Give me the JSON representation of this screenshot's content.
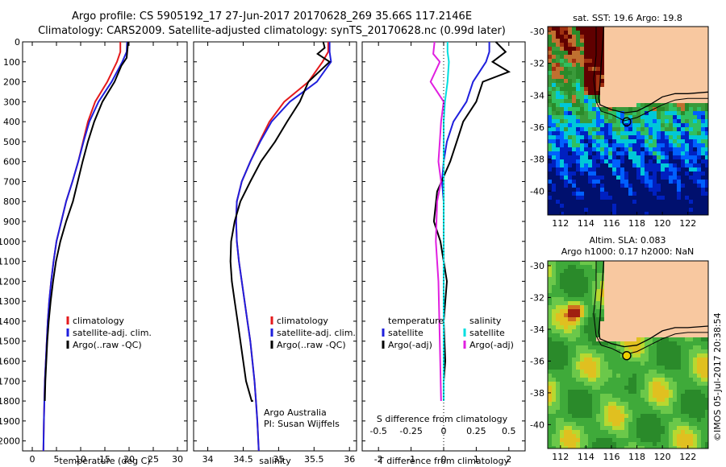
{
  "header": {
    "title_line1": "Argo profile: CS 5905192_17 27-Jun-2017 20170628_269 35.66S 117.2146E",
    "title_line2": "Climatology: CARS2009. Satellite-adjusted climatology: synTS_20170628.nc (0.99d later)"
  },
  "colors": {
    "climatology": "#e41a1c",
    "satellite": "#1f1fdd",
    "argo": "#000000",
    "sal_satellite": "#00dfe0",
    "sal_argo": "#e020e0"
  },
  "chart_data": [
    {
      "type": "line",
      "id": "temperature",
      "xlabel": "temperature (deg C)",
      "ylabel": "",
      "xticks": [
        "0",
        "5",
        "10",
        "15",
        "20",
        "25",
        "30"
      ],
      "yticks": [
        "0",
        "100",
        "200",
        "300",
        "400",
        "500",
        "600",
        "700",
        "800",
        "900",
        "1000",
        "1100",
        "1200",
        "1300",
        "1400",
        "1500",
        "1600",
        "1700",
        "1800",
        "1900",
        "2000"
      ],
      "xlim": [
        -2,
        32
      ],
      "ylim": [
        2050,
        0
      ],
      "legend": [
        "climatology",
        "satellite-adj. clim.",
        "Argo(..raw -QC)"
      ],
      "series": [
        {
          "name": "climatology",
          "color": "#e41a1c",
          "x": [
            18.2,
            18.2,
            17.5,
            15.5,
            13.0,
            11.5,
            10.5,
            9.5,
            8.3,
            7.0,
            6.0,
            5.0,
            4.4,
            3.9,
            3.5,
            3.2,
            3.0,
            2.8,
            2.6,
            2.5,
            2.4,
            2.3
          ],
          "y": [
            0,
            50,
            100,
            200,
            300,
            400,
            500,
            600,
            700,
            800,
            900,
            1000,
            1100,
            1200,
            1300,
            1400,
            1500,
            1600,
            1700,
            1800,
            1900,
            2050
          ]
        },
        {
          "name": "satellite-adj. clim.",
          "color": "#1f1fdd",
          "x": [
            19.6,
            19.5,
            18.6,
            16.4,
            13.7,
            11.8,
            10.6,
            9.5,
            8.3,
            7.0,
            6.0,
            5.0,
            4.4,
            3.9,
            3.5,
            3.2,
            3.0,
            2.8,
            2.6,
            2.5,
            2.4,
            2.3
          ],
          "y": [
            0,
            50,
            100,
            200,
            300,
            400,
            500,
            600,
            700,
            800,
            900,
            1000,
            1100,
            1200,
            1300,
            1400,
            1500,
            1600,
            1700,
            1800,
            1900,
            2050
          ]
        },
        {
          "name": "Argo(..raw -QC)",
          "color": "#000000",
          "x": [
            19.8,
            19.7,
            19.5,
            18.4,
            17.0,
            14.5,
            12.8,
            11.5,
            10.4,
            9.4,
            8.4,
            7.0,
            5.8,
            4.9,
            4.3,
            3.8,
            3.4,
            3.1,
            2.9,
            2.7,
            2.6
          ],
          "y": [
            0,
            30,
            80,
            120,
            200,
            300,
            400,
            500,
            600,
            700,
            800,
            900,
            1000,
            1100,
            1200,
            1300,
            1400,
            1500,
            1600,
            1700,
            1800
          ]
        }
      ]
    },
    {
      "type": "line",
      "id": "salinity",
      "xlabel": "salinity",
      "xticks": [
        "34",
        "34.5",
        "35",
        "35.5",
        "36"
      ],
      "xlim": [
        33.8,
        36.1
      ],
      "ylim": [
        2050,
        0
      ],
      "legend": [
        "climatology",
        "satellite-adj. clim.",
        "Argo(..raw -QC)"
      ],
      "annotation": [
        "Argo Australia",
        "PI: Susan Wijffels"
      ],
      "series": [
        {
          "name": "climatology",
          "color": "#e41a1c",
          "x": [
            35.7,
            35.7,
            35.62,
            35.42,
            35.08,
            34.87,
            34.73,
            34.6,
            34.48,
            34.41,
            34.4,
            34.41,
            34.44,
            34.48,
            34.52,
            34.56,
            34.6,
            34.63,
            34.66,
            34.68,
            34.7,
            34.72
          ],
          "y": [
            0,
            50,
            100,
            200,
            300,
            400,
            500,
            600,
            700,
            800,
            900,
            1000,
            1100,
            1200,
            1300,
            1400,
            1500,
            1600,
            1700,
            1800,
            1900,
            2050
          ]
        },
        {
          "name": "satellite-adj. clim.",
          "color": "#1f1fdd",
          "x": [
            35.72,
            35.72,
            35.74,
            35.54,
            35.16,
            34.9,
            34.74,
            34.6,
            34.48,
            34.41,
            34.4,
            34.41,
            34.44,
            34.48,
            34.52,
            34.56,
            34.6,
            34.63,
            34.66,
            34.68,
            34.7,
            34.72
          ],
          "y": [
            0,
            50,
            100,
            200,
            300,
            400,
            500,
            600,
            700,
            800,
            900,
            1000,
            1100,
            1200,
            1300,
            1400,
            1500,
            1600,
            1700,
            1800,
            1900,
            2050
          ]
        },
        {
          "name": "Argo(..raw -QC)",
          "color": "#000000",
          "x": [
            35.63,
            35.65,
            35.55,
            35.72,
            35.45,
            35.42,
            35.3,
            35.12,
            34.95,
            34.75,
            34.6,
            34.46,
            34.38,
            34.33,
            34.32,
            34.34,
            34.38,
            34.42,
            34.46,
            34.5,
            34.54,
            34.58,
            34.62,
            34.64
          ],
          "y": [
            0,
            30,
            60,
            100,
            190,
            200,
            300,
            400,
            500,
            600,
            700,
            800,
            900,
            1000,
            1100,
            1200,
            1300,
            1400,
            1500,
            1600,
            1700,
            1750,
            1800,
            1800
          ]
        }
      ]
    },
    {
      "type": "line",
      "id": "difference",
      "xlabel": "T difference from climatology",
      "xticks": [
        "-2",
        "-1",
        "0",
        "1",
        "2"
      ],
      "xlim": [
        -2.5,
        2.5
      ],
      "secondary_xlabel": "S difference from climatology",
      "secondary_xticks": [
        "-0.5",
        "-0.25",
        "0",
        "0.25",
        "0.5"
      ],
      "ylim": [
        2050,
        0
      ],
      "legend_left": {
        "title": "temperature",
        "items": [
          "satellite",
          "Argo(-adj)"
        ]
      },
      "legend_right": {
        "title": "salinity",
        "items": [
          "satellite",
          "Argo(-adj)"
        ]
      },
      "series": [
        {
          "name": "temperature satellite",
          "color": "#1f1fdd",
          "x": [
            1.4,
            1.4,
            1.3,
            0.9,
            0.7,
            0.3,
            0.1,
            0.0,
            -0.05,
            0.0,
            0.0,
            0.0,
            0.0,
            0.0,
            0.0,
            0.0
          ],
          "y": [
            0,
            50,
            100,
            200,
            300,
            400,
            500,
            600,
            700,
            800,
            900,
            1000,
            1200,
            1400,
            1600,
            1800
          ]
        },
        {
          "name": "temperature Argo(-adj)",
          "color": "#000000",
          "x": [
            1.6,
            1.9,
            1.5,
            2.0,
            1.2,
            1.0,
            0.6,
            0.4,
            0.2,
            -0.2,
            -0.3,
            -0.1,
            0.1,
            0.0,
            0.05,
            0.0,
            0.0
          ],
          "y": [
            0,
            50,
            100,
            150,
            200,
            300,
            400,
            500,
            600,
            750,
            900,
            1000,
            1200,
            1400,
            1600,
            1700,
            1800
          ]
        },
        {
          "name": "salinity satellite",
          "color": "#00dfe0",
          "x": [
            0.03,
            0.03,
            0.04,
            0.03,
            0.01,
            0.0,
            0.0,
            0.0,
            0.0,
            0.0,
            0.0,
            0.0
          ],
          "y": [
            0,
            50,
            100,
            200,
            300,
            400,
            500,
            700,
            900,
            1200,
            1500,
            1800
          ]
        },
        {
          "name": "salinity Argo(-adj)",
          "color": "#e020e0",
          "x": [
            -0.07,
            -0.08,
            -0.03,
            -0.1,
            0.0,
            -0.02,
            -0.03,
            -0.04,
            -0.02,
            -0.05,
            -0.06,
            -0.04,
            -0.03,
            -0.02
          ],
          "y": [
            0,
            60,
            100,
            200,
            300,
            400,
            500,
            600,
            700,
            800,
            1000,
            1200,
            1500,
            1800
          ]
        }
      ]
    }
  ],
  "sst_map": {
    "title": "sat. SST: 19.6 Argo: 19.8",
    "xticks": [
      "112",
      "114",
      "116",
      "118",
      "120",
      "122"
    ],
    "yticks": [
      "-30",
      "-32",
      "-34",
      "-36",
      "-38",
      "-40"
    ],
    "marker": {
      "lon": 117.2,
      "lat": -35.66
    }
  },
  "sla_map": {
    "title_line1": "Altim. SLA: 0.083",
    "title_line2": "Argo h1000: 0.17 h2000: NaN",
    "xticks": [
      "112",
      "114",
      "116",
      "118",
      "120",
      "122"
    ],
    "yticks": [
      "-30",
      "-32",
      "-34",
      "-36",
      "-38",
      "-40"
    ],
    "marker": {
      "lon": 117.2,
      "lat": -35.66
    }
  },
  "footer": {
    "stamp": "©IMOS 05-Jul-2017 20:38:54"
  }
}
